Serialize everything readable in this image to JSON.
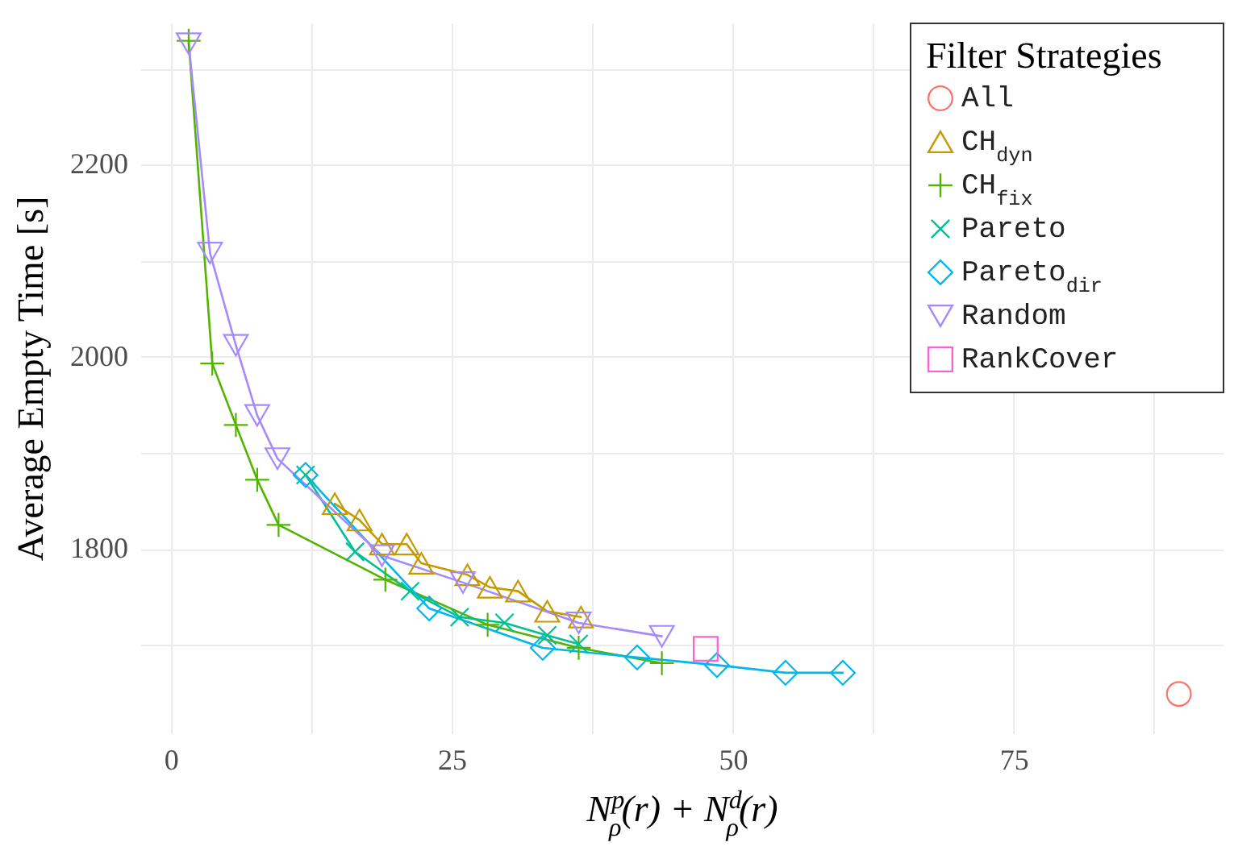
{
  "chart_data": {
    "type": "line",
    "xlabel": "N$^{p}$$_{ρ}$(r) + N$^{d}$$_{ρ}$(r)",
    "ylabel": "Average Empty Time [s]",
    "legend_title": "Filter Strategies",
    "legend": "top right",
    "grid": true,
    "xlim": [
      -2.7,
      93.6
    ],
    "xticks": [
      0,
      {
        "value": 12.5,
        "label": null
      },
      25,
      {
        "value": 37.5,
        "label": null
      },
      50,
      {
        "value": 62.5,
        "label": null
      },
      75,
      {
        "value": 87.5,
        "label": null
      }
    ],
    "ylim": [
      1608,
      2348
    ],
    "yticks": [
      {
        "value": 1700,
        "label": null
      },
      1800,
      {
        "value": 1900,
        "label": null
      },
      2000,
      {
        "value": 2100,
        "label": null
      },
      2200,
      {
        "value": 2300,
        "label": null
      }
    ],
    "series": [
      {
        "name": "All",
        "type": "scatter",
        "marker": "circle",
        "color": "#f8766d",
        "x": [
          89.7
        ],
        "values": [
          1649
        ]
      },
      {
        "name": "CH$_{dyn}$",
        "marker": "triangle",
        "color": "#c49a00",
        "x": [
          14.6,
          16.8,
          18.8,
          21.0,
          22.3,
          26.4,
          28.4,
          30.9,
          33.5,
          36.5
        ],
        "values": [
          1847,
          1830,
          1805,
          1805,
          1785,
          1773,
          1760,
          1756,
          1735,
          1729
        ]
      },
      {
        "name": "CH$_{fix}$",
        "marker": "plus",
        "color": "#53b400",
        "x": [
          1.6,
          3.7,
          5.8,
          7.7,
          9.6,
          19.1,
          28.2,
          36.3,
          43.7
        ],
        "values": [
          2329,
          1993,
          1929,
          1872,
          1825,
          1768,
          1721,
          1697,
          1681
        ]
      },
      {
        "name": "Pareto",
        "marker": "x",
        "color": "#00c094",
        "x": [
          12.0,
          16.4,
          21.3,
          25.7,
          29.7,
          33.5,
          36.3
        ],
        "values": [
          1877,
          1797,
          1756,
          1729,
          1723,
          1710,
          1701
        ]
      },
      {
        "name": "Pareto$_{dir}$",
        "marker": "diamond",
        "color": "#00b6eb",
        "x": [
          12.0,
          23.0,
          33.1,
          41.5,
          48.6,
          54.7,
          59.8
        ],
        "values": [
          1877,
          1738,
          1697,
          1687,
          1679,
          1671,
          1671
        ]
      },
      {
        "name": "Random",
        "marker": "triangle-down",
        "color": "#a58aff",
        "x": [
          1.6,
          3.5,
          5.8,
          7.7,
          9.5,
          18.8,
          26.0,
          36.3,
          43.7
        ],
        "values": [
          2326,
          2108,
          2012,
          1939,
          1894,
          1793,
          1765,
          1723,
          1709
        ]
      },
      {
        "name": "RankCover",
        "type": "scatter",
        "marker": "square",
        "color": "#fb61d7",
        "x": [
          47.6
        ],
        "values": [
          1696
        ]
      }
    ]
  }
}
